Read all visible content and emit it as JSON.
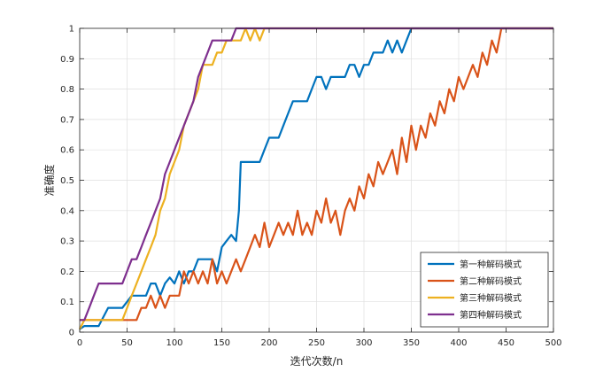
{
  "chart_data": {
    "type": "line",
    "title": "",
    "xlabel": "迭代次数/n",
    "ylabel": "准确度",
    "xlim": [
      0,
      500
    ],
    "ylim": [
      0,
      1
    ],
    "xticks": [
      0,
      50,
      100,
      150,
      200,
      250,
      300,
      350,
      400,
      450,
      500
    ],
    "yticks": [
      0,
      0.1,
      0.2,
      0.3,
      0.4,
      0.5,
      0.6,
      0.7,
      0.8,
      0.9,
      1
    ],
    "grid": true,
    "legend_position": "bottom-right",
    "series": [
      {
        "name": "第一种解码模式",
        "color": "#0072BD",
        "points": [
          [
            0,
            0.01
          ],
          [
            5,
            0.02
          ],
          [
            20,
            0.02
          ],
          [
            30,
            0.08
          ],
          [
            40,
            0.08
          ],
          [
            45,
            0.08
          ],
          [
            55,
            0.12
          ],
          [
            60,
            0.12
          ],
          [
            70,
            0.12
          ],
          [
            75,
            0.16
          ],
          [
            80,
            0.16
          ],
          [
            85,
            0.12
          ],
          [
            90,
            0.16
          ],
          [
            95,
            0.18
          ],
          [
            100,
            0.16
          ],
          [
            105,
            0.2
          ],
          [
            110,
            0.16
          ],
          [
            115,
            0.2
          ],
          [
            120,
            0.2
          ],
          [
            125,
            0.24
          ],
          [
            130,
            0.24
          ],
          [
            140,
            0.24
          ],
          [
            145,
            0.2
          ],
          [
            150,
            0.28
          ],
          [
            155,
            0.3
          ],
          [
            160,
            0.32
          ],
          [
            165,
            0.3
          ],
          [
            168,
            0.4
          ],
          [
            170,
            0.56
          ],
          [
            180,
            0.56
          ],
          [
            190,
            0.56
          ],
          [
            195,
            0.6
          ],
          [
            200,
            0.64
          ],
          [
            210,
            0.64
          ],
          [
            215,
            0.68
          ],
          [
            220,
            0.72
          ],
          [
            225,
            0.76
          ],
          [
            230,
            0.76
          ],
          [
            240,
            0.76
          ],
          [
            245,
            0.8
          ],
          [
            250,
            0.84
          ],
          [
            255,
            0.84
          ],
          [
            260,
            0.8
          ],
          [
            265,
            0.84
          ],
          [
            270,
            0.84
          ],
          [
            280,
            0.84
          ],
          [
            285,
            0.88
          ],
          [
            290,
            0.88
          ],
          [
            295,
            0.84
          ],
          [
            300,
            0.88
          ],
          [
            305,
            0.88
          ],
          [
            310,
            0.92
          ],
          [
            315,
            0.92
          ],
          [
            320,
            0.92
          ],
          [
            325,
            0.96
          ],
          [
            330,
            0.92
          ],
          [
            335,
            0.96
          ],
          [
            340,
            0.92
          ],
          [
            345,
            0.96
          ],
          [
            350,
            1
          ],
          [
            500,
            1
          ]
        ]
      },
      {
        "name": "第二种解码模式",
        "color": "#D95319",
        "points": [
          [
            0,
            0.04
          ],
          [
            10,
            0.04
          ],
          [
            20,
            0.04
          ],
          [
            30,
            0.04
          ],
          [
            40,
            0.04
          ],
          [
            50,
            0.04
          ],
          [
            60,
            0.04
          ],
          [
            65,
            0.08
          ],
          [
            70,
            0.08
          ],
          [
            75,
            0.12
          ],
          [
            80,
            0.08
          ],
          [
            85,
            0.12
          ],
          [
            90,
            0.08
          ],
          [
            95,
            0.12
          ],
          [
            100,
            0.12
          ],
          [
            105,
            0.12
          ],
          [
            110,
            0.2
          ],
          [
            115,
            0.16
          ],
          [
            120,
            0.2
          ],
          [
            125,
            0.16
          ],
          [
            130,
            0.2
          ],
          [
            135,
            0.16
          ],
          [
            140,
            0.24
          ],
          [
            145,
            0.16
          ],
          [
            150,
            0.2
          ],
          [
            155,
            0.16
          ],
          [
            160,
            0.2
          ],
          [
            165,
            0.24
          ],
          [
            170,
            0.2
          ],
          [
            175,
            0.24
          ],
          [
            180,
            0.28
          ],
          [
            185,
            0.32
          ],
          [
            190,
            0.28
          ],
          [
            195,
            0.36
          ],
          [
            200,
            0.28
          ],
          [
            205,
            0.32
          ],
          [
            210,
            0.36
          ],
          [
            215,
            0.32
          ],
          [
            220,
            0.36
          ],
          [
            225,
            0.32
          ],
          [
            230,
            0.4
          ],
          [
            235,
            0.32
          ],
          [
            240,
            0.36
          ],
          [
            245,
            0.32
          ],
          [
            250,
            0.4
          ],
          [
            255,
            0.36
          ],
          [
            260,
            0.44
          ],
          [
            265,
            0.36
          ],
          [
            270,
            0.4
          ],
          [
            275,
            0.32
          ],
          [
            280,
            0.4
          ],
          [
            285,
            0.44
          ],
          [
            290,
            0.4
          ],
          [
            295,
            0.48
          ],
          [
            300,
            0.44
          ],
          [
            305,
            0.52
          ],
          [
            310,
            0.48
          ],
          [
            315,
            0.56
          ],
          [
            320,
            0.52
          ],
          [
            325,
            0.56
          ],
          [
            330,
            0.6
          ],
          [
            335,
            0.52
          ],
          [
            340,
            0.64
          ],
          [
            345,
            0.56
          ],
          [
            350,
            0.68
          ],
          [
            355,
            0.6
          ],
          [
            360,
            0.68
          ],
          [
            365,
            0.64
          ],
          [
            370,
            0.72
          ],
          [
            375,
            0.68
          ],
          [
            380,
            0.76
          ],
          [
            385,
            0.72
          ],
          [
            390,
            0.8
          ],
          [
            395,
            0.76
          ],
          [
            400,
            0.84
          ],
          [
            405,
            0.8
          ],
          [
            410,
            0.84
          ],
          [
            415,
            0.88
          ],
          [
            420,
            0.84
          ],
          [
            425,
            0.92
          ],
          [
            430,
            0.88
          ],
          [
            435,
            0.96
          ],
          [
            440,
            0.92
          ],
          [
            445,
            1
          ],
          [
            500,
            1
          ]
        ]
      },
      {
        "name": "第三种解码模式",
        "color": "#EDB120",
        "points": [
          [
            0,
            0.01
          ],
          [
            5,
            0.04
          ],
          [
            15,
            0.04
          ],
          [
            25,
            0.04
          ],
          [
            35,
            0.04
          ],
          [
            45,
            0.04
          ],
          [
            50,
            0.08
          ],
          [
            55,
            0.12
          ],
          [
            60,
            0.16
          ],
          [
            65,
            0.2
          ],
          [
            70,
            0.24
          ],
          [
            75,
            0.28
          ],
          [
            80,
            0.32
          ],
          [
            85,
            0.4
          ],
          [
            90,
            0.44
          ],
          [
            95,
            0.52
          ],
          [
            100,
            0.56
          ],
          [
            105,
            0.6
          ],
          [
            110,
            0.68
          ],
          [
            115,
            0.72
          ],
          [
            120,
            0.76
          ],
          [
            125,
            0.8
          ],
          [
            130,
            0.88
          ],
          [
            135,
            0.88
          ],
          [
            140,
            0.88
          ],
          [
            145,
            0.92
          ],
          [
            150,
            0.92
          ],
          [
            155,
            0.96
          ],
          [
            160,
            0.96
          ],
          [
            170,
            0.96
          ],
          [
            175,
            1
          ],
          [
            180,
            0.96
          ],
          [
            185,
            1
          ],
          [
            190,
            0.96
          ],
          [
            195,
            1
          ],
          [
            200,
            1
          ],
          [
            210,
            1
          ],
          [
            500,
            1
          ]
        ]
      },
      {
        "name": "第四种解码模式",
        "color": "#7E2F8E",
        "points": [
          [
            0,
            0.04
          ],
          [
            5,
            0.04
          ],
          [
            10,
            0.08
          ],
          [
            15,
            0.12
          ],
          [
            20,
            0.16
          ],
          [
            25,
            0.16
          ],
          [
            30,
            0.16
          ],
          [
            35,
            0.16
          ],
          [
            40,
            0.16
          ],
          [
            45,
            0.16
          ],
          [
            50,
            0.2
          ],
          [
            55,
            0.24
          ],
          [
            60,
            0.24
          ],
          [
            65,
            0.28
          ],
          [
            70,
            0.32
          ],
          [
            75,
            0.36
          ],
          [
            80,
            0.4
          ],
          [
            85,
            0.44
          ],
          [
            90,
            0.52
          ],
          [
            95,
            0.56
          ],
          [
            100,
            0.6
          ],
          [
            105,
            0.64
          ],
          [
            110,
            0.68
          ],
          [
            115,
            0.72
          ],
          [
            120,
            0.76
          ],
          [
            125,
            0.84
          ],
          [
            130,
            0.88
          ],
          [
            135,
            0.92
          ],
          [
            140,
            0.96
          ],
          [
            150,
            0.96
          ],
          [
            155,
            0.96
          ],
          [
            160,
            0.96
          ],
          [
            165,
            1
          ],
          [
            170,
            1
          ],
          [
            180,
            1
          ],
          [
            190,
            1
          ],
          [
            200,
            1
          ],
          [
            210,
            1
          ],
          [
            500,
            1
          ]
        ]
      }
    ]
  }
}
